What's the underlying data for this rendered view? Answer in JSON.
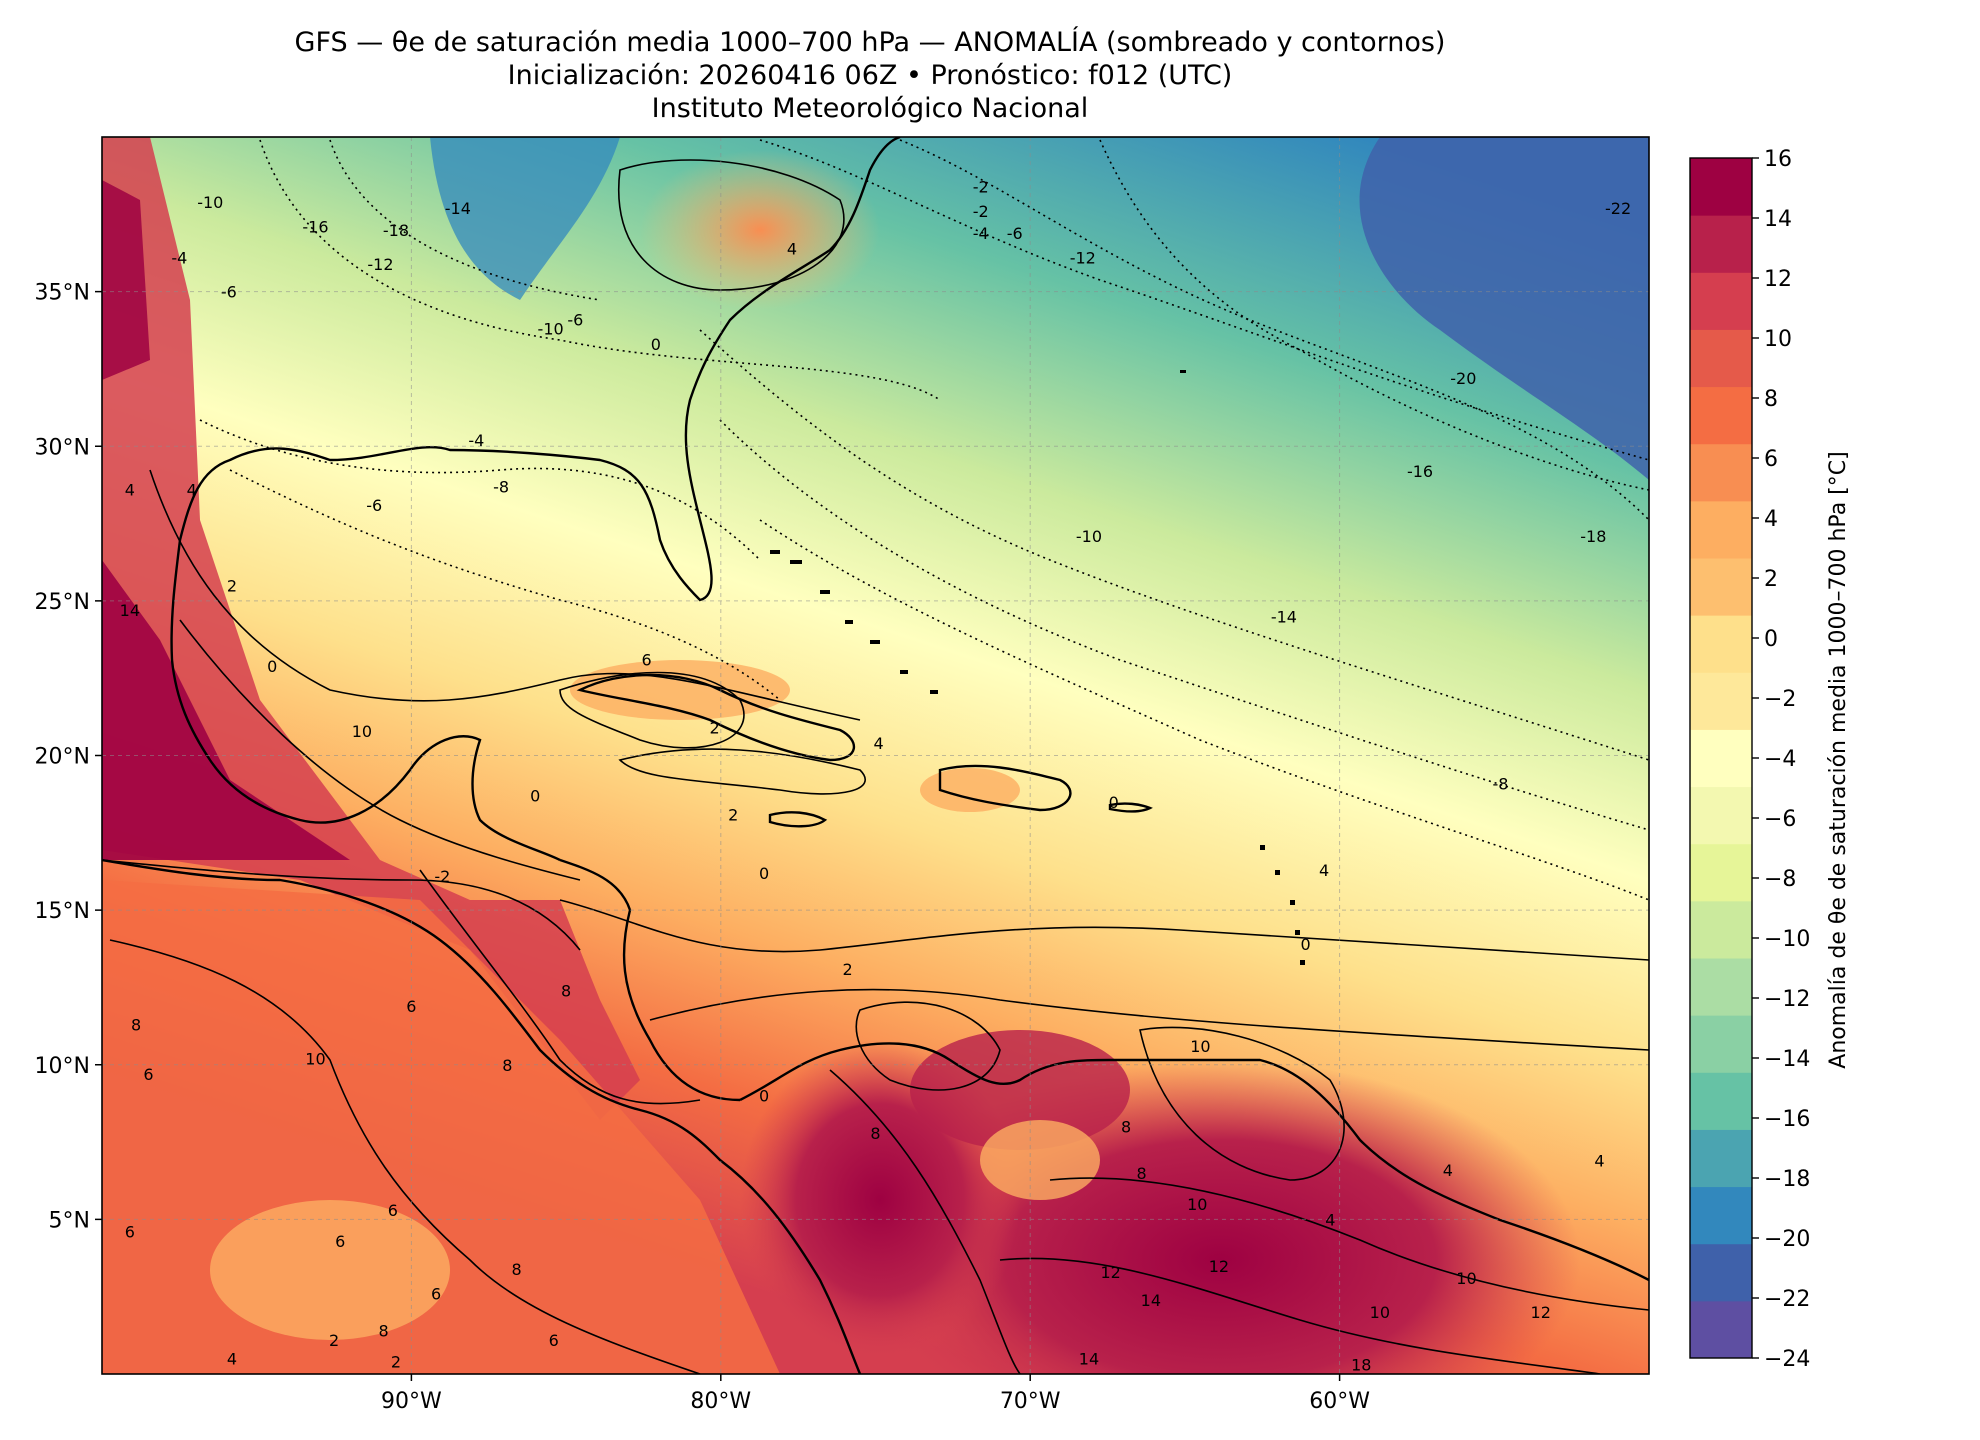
{
  "title": {
    "line1": "GFS — θe de saturación media 1000–700 hPa — ANOMALÍA (sombreado y contornos)",
    "line2": "Inicialización: 20260416 06Z   •   Pronóstico: f012 (UTC)",
    "line3": "Instituto Meteorológico Nacional"
  },
  "map": {
    "extent": {
      "lon_min": -100,
      "lon_max": -50,
      "lat_min": 0,
      "lat_max": 40
    },
    "lat_ticks": [
      {
        "value": 5,
        "label": "5°N"
      },
      {
        "value": 10,
        "label": "10°N"
      },
      {
        "value": 15,
        "label": "15°N"
      },
      {
        "value": 20,
        "label": "20°N"
      },
      {
        "value": 25,
        "label": "25°N"
      },
      {
        "value": 30,
        "label": "30°N"
      },
      {
        "value": 35,
        "label": "35°N"
      }
    ],
    "lon_ticks": [
      {
        "value": -90,
        "label": "90°W"
      },
      {
        "value": -80,
        "label": "80°W"
      },
      {
        "value": -70,
        "label": "70°W"
      },
      {
        "value": -60,
        "label": "60°W"
      }
    ],
    "contour_labels": [
      {
        "lon": -96.5,
        "lat": 37.9,
        "text": "-10"
      },
      {
        "lon": -93.1,
        "lat": 37.1,
        "text": "-16"
      },
      {
        "lon": -90.5,
        "lat": 37.0,
        "text": "-18"
      },
      {
        "lon": -88.5,
        "lat": 37.7,
        "text": "-14"
      },
      {
        "lon": -91.0,
        "lat": 35.9,
        "text": "-12"
      },
      {
        "lon": -97.5,
        "lat": 36.1,
        "text": "-4"
      },
      {
        "lon": -95.9,
        "lat": 35.0,
        "text": "-6"
      },
      {
        "lon": -85.5,
        "lat": 33.8,
        "text": "-10"
      },
      {
        "lon": -84.7,
        "lat": 34.1,
        "text": "-6"
      },
      {
        "lon": -82.1,
        "lat": 33.3,
        "text": "0"
      },
      {
        "lon": -77.7,
        "lat": 36.4,
        "text": "4"
      },
      {
        "lon": -71.6,
        "lat": 38.4,
        "text": "-2"
      },
      {
        "lon": -71.6,
        "lat": 37.6,
        "text": "-2"
      },
      {
        "lon": -71.6,
        "lat": 36.9,
        "text": "-4"
      },
      {
        "lon": -70.5,
        "lat": 36.9,
        "text": "-6"
      },
      {
        "lon": -68.3,
        "lat": 36.1,
        "text": "-12"
      },
      {
        "lon": -51.0,
        "lat": 37.7,
        "text": "-22"
      },
      {
        "lon": -56.0,
        "lat": 32.2,
        "text": "-20"
      },
      {
        "lon": -57.4,
        "lat": 29.2,
        "text": "-16"
      },
      {
        "lon": -51.8,
        "lat": 27.1,
        "text": "-18"
      },
      {
        "lon": -68.1,
        "lat": 27.1,
        "text": "-10"
      },
      {
        "lon": -61.8,
        "lat": 24.5,
        "text": "-14"
      },
      {
        "lon": -54.8,
        "lat": 19.1,
        "text": "-8"
      },
      {
        "lon": -87.9,
        "lat": 30.2,
        "text": "-4"
      },
      {
        "lon": -87.1,
        "lat": 28.7,
        "text": "-8"
      },
      {
        "lon": -91.2,
        "lat": 28.1,
        "text": "-6"
      },
      {
        "lon": -99.1,
        "lat": 28.6,
        "text": "4"
      },
      {
        "lon": -97.1,
        "lat": 28.6,
        "text": "4"
      },
      {
        "lon": -95.8,
        "lat": 25.5,
        "text": "2"
      },
      {
        "lon": -99.1,
        "lat": 24.7,
        "text": "14"
      },
      {
        "lon": -94.5,
        "lat": 22.9,
        "text": "0"
      },
      {
        "lon": -91.6,
        "lat": 20.8,
        "text": "10"
      },
      {
        "lon": -82.4,
        "lat": 23.1,
        "text": "6"
      },
      {
        "lon": -80.2,
        "lat": 20.9,
        "text": "2"
      },
      {
        "lon": -74.9,
        "lat": 20.4,
        "text": "4"
      },
      {
        "lon": -86.0,
        "lat": 18.7,
        "text": "0"
      },
      {
        "lon": -79.6,
        "lat": 18.1,
        "text": "2"
      },
      {
        "lon": -78.6,
        "lat": 16.2,
        "text": "0"
      },
      {
        "lon": -89.0,
        "lat": 16.1,
        "text": "-2"
      },
      {
        "lon": -67.3,
        "lat": 18.5,
        "text": "0"
      },
      {
        "lon": -60.5,
        "lat": 16.3,
        "text": "4"
      },
      {
        "lon": -61.1,
        "lat": 13.9,
        "text": "0"
      },
      {
        "lon": -75.9,
        "lat": 13.1,
        "text": "2"
      },
      {
        "lon": -90.0,
        "lat": 11.9,
        "text": "6"
      },
      {
        "lon": -85.0,
        "lat": 12.4,
        "text": "8"
      },
      {
        "lon": -86.9,
        "lat": 10.0,
        "text": "8"
      },
      {
        "lon": -93.1,
        "lat": 10.2,
        "text": "10"
      },
      {
        "lon": -98.5,
        "lat": 9.7,
        "text": "6"
      },
      {
        "lon": -98.9,
        "lat": 11.3,
        "text": "8"
      },
      {
        "lon": -78.6,
        "lat": 9.0,
        "text": "0"
      },
      {
        "lon": -75.0,
        "lat": 7.8,
        "text": "8"
      },
      {
        "lon": -66.9,
        "lat": 8.0,
        "text": "8"
      },
      {
        "lon": -66.4,
        "lat": 6.5,
        "text": "8"
      },
      {
        "lon": -64.5,
        "lat": 10.6,
        "text": "10"
      },
      {
        "lon": -60.3,
        "lat": 5.0,
        "text": "4"
      },
      {
        "lon": -56.5,
        "lat": 6.6,
        "text": "4"
      },
      {
        "lon": -51.6,
        "lat": 6.9,
        "text": "4"
      },
      {
        "lon": -64.6,
        "lat": 5.5,
        "text": "10"
      },
      {
        "lon": -63.9,
        "lat": 3.5,
        "text": "12"
      },
      {
        "lon": -67.4,
        "lat": 3.3,
        "text": "12"
      },
      {
        "lon": -66.1,
        "lat": 2.4,
        "text": "14"
      },
      {
        "lon": -58.7,
        "lat": 2.0,
        "text": "10"
      },
      {
        "lon": -55.9,
        "lat": 3.1,
        "text": "10"
      },
      {
        "lon": -53.5,
        "lat": 2.0,
        "text": "12"
      },
      {
        "lon": -68.1,
        "lat": 0.5,
        "text": "14"
      },
      {
        "lon": -59.3,
        "lat": 0.3,
        "text": "18"
      },
      {
        "lon": -90.6,
        "lat": 5.3,
        "text": "6"
      },
      {
        "lon": -92.3,
        "lat": 4.3,
        "text": "6"
      },
      {
        "lon": -99.1,
        "lat": 4.6,
        "text": "6"
      },
      {
        "lon": -86.6,
        "lat": 3.4,
        "text": "8"
      },
      {
        "lon": -89.2,
        "lat": 2.6,
        "text": "6"
      },
      {
        "lon": -90.9,
        "lat": 1.4,
        "text": "8"
      },
      {
        "lon": -85.4,
        "lat": 1.1,
        "text": "6"
      },
      {
        "lon": -92.5,
        "lat": 1.1,
        "text": "2"
      },
      {
        "lon": -95.8,
        "lat": 0.5,
        "text": "4"
      },
      {
        "lon": -90.5,
        "lat": 0.4,
        "text": "2"
      }
    ]
  },
  "colorbar": {
    "label": "Anomalía de θe de saturación media 1000–700 hPa [°C]",
    "levels": [
      -24,
      -22,
      -20,
      -18,
      -16,
      -14,
      -12,
      -10,
      -8,
      -6,
      -4,
      -2,
      0,
      2,
      4,
      6,
      8,
      10,
      12,
      14,
      16
    ],
    "tick_labels": [
      "16",
      "14",
      "12",
      "10",
      "8",
      "6",
      "4",
      "2",
      "0",
      "−2",
      "−4",
      "−6",
      "−8",
      "−10",
      "−12",
      "−14",
      "−16",
      "−18",
      "−20",
      "−22",
      "−24"
    ],
    "colors": [
      "#5e4fa2",
      "#3f61aa",
      "#3288bd",
      "#4ba4b1",
      "#66c2a5",
      "#8ad0a4",
      "#abdda4",
      "#cbea9d",
      "#e6f598",
      "#f3f8b0",
      "#ffffbf",
      "#fee89a",
      "#fee08b",
      "#fdbf6f",
      "#fdae61",
      "#f88e52",
      "#f46d43",
      "#e55a4a",
      "#d53e4f",
      "#b8214b",
      "#9e0142"
    ]
  }
}
